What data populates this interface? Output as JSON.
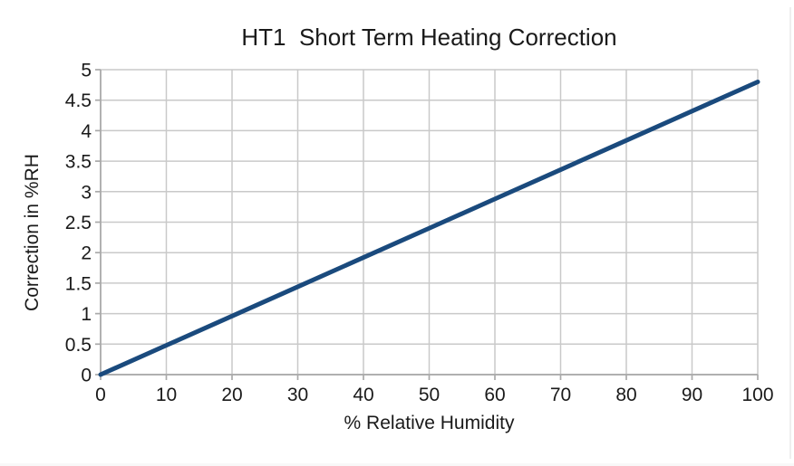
{
  "page": {
    "background": "#ffffff"
  },
  "chart_data": {
    "type": "line",
    "title": "HT1  Short Term Heating Correction",
    "xlabel": "% Relative Humidity",
    "ylabel": "Correction in %RH",
    "xlim": [
      0,
      100
    ],
    "ylim": [
      0,
      5
    ],
    "xticks": [
      0,
      10,
      20,
      30,
      40,
      50,
      60,
      70,
      80,
      90,
      100
    ],
    "yticks": [
      0,
      0.5,
      1,
      1.5,
      2,
      2.5,
      3,
      3.5,
      4,
      4.5,
      5
    ],
    "grid": true,
    "legend_position": "none",
    "series": [
      {
        "name": "HT1 short term heating correction",
        "color": "#1A4A7D",
        "x": [
          0,
          10,
          20,
          30,
          40,
          50,
          60,
          70,
          80,
          90,
          100
        ],
        "y": [
          0,
          0.48,
          0.96,
          1.44,
          1.92,
          2.4,
          2.88,
          3.36,
          3.84,
          4.32,
          4.8
        ]
      }
    ],
    "colors": {
      "gridline": "#c9c9c9",
      "axis": "#a9a9a9",
      "text": "#1a1a1a",
      "plot_background": "#ffffff"
    }
  }
}
